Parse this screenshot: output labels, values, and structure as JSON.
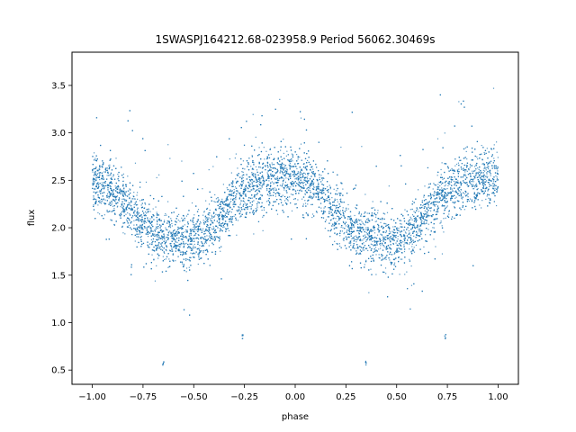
{
  "chart_data": {
    "type": "scatter",
    "title": "1SWASPJ164212.68-023958.9 Period 56062.30469s",
    "xlabel": "phase",
    "ylabel": "flux",
    "xlim": [
      -1.1,
      1.1
    ],
    "ylim": [
      0.35,
      3.85
    ],
    "x_ticks": [
      -1.0,
      -0.75,
      -0.5,
      -0.25,
      0.0,
      0.25,
      0.5,
      0.75,
      1.0
    ],
    "x_tick_labels": [
      "−1.00",
      "−0.75",
      "−0.50",
      "−0.25",
      "0.00",
      "0.25",
      "0.50",
      "0.75",
      "1.00"
    ],
    "y_ticks": [
      0.5,
      1.0,
      1.5,
      2.0,
      2.5,
      3.0,
      3.5
    ],
    "y_tick_labels": [
      "0.5",
      "1.0",
      "1.5",
      "2.0",
      "2.5",
      "3.0",
      "3.5"
    ],
    "grid": false,
    "legend": "none",
    "marker_color": "#1f77b4",
    "phase_range": [
      -1.0,
      1.0
    ],
    "flux_trend": {
      "phase": [
        -1.0,
        -0.9,
        -0.8,
        -0.7,
        -0.6,
        -0.5,
        -0.4,
        -0.3,
        -0.2,
        -0.1,
        0.0,
        0.1,
        0.2,
        0.3,
        0.4,
        0.5,
        0.6,
        0.7,
        0.8,
        0.9,
        1.0
      ],
      "flux": [
        2.5,
        2.4,
        2.15,
        1.95,
        1.9,
        1.85,
        2.0,
        2.3,
        2.45,
        2.5,
        2.55,
        2.4,
        2.15,
        1.95,
        1.9,
        1.85,
        2.0,
        2.3,
        2.45,
        2.5,
        2.55
      ]
    },
    "flux_scatter": 0.15,
    "outlier_groups": [
      {
        "phase": -0.65,
        "flux": 0.57
      },
      {
        "phase": 0.35,
        "flux": 0.57
      },
      {
        "phase": -0.26,
        "flux": 0.85
      },
      {
        "phase": 0.74,
        "flux": 0.85
      }
    ]
  }
}
